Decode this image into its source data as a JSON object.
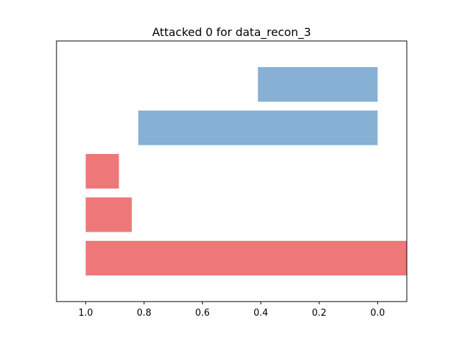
{
  "chart_data": {
    "type": "bar",
    "orientation": "horizontal",
    "title": "Attacked 0 for data_recon_3",
    "xlabel": "",
    "ylabel": "",
    "x_axis_inverted": true,
    "xlim": [
      1.1,
      -0.1
    ],
    "xticks": [
      "1.0",
      "0.8",
      "0.6",
      "0.4",
      "0.2",
      "0.0"
    ],
    "xtick_values": [
      1.0,
      0.8,
      0.6,
      0.4,
      0.2,
      0.0
    ],
    "yticks": [],
    "grid": false,
    "legend": "none",
    "bars": [
      {
        "start": 0.0,
        "end": 0.41,
        "color": "#86b0d4"
      },
      {
        "start": 0.0,
        "end": 0.82,
        "color": "#86b0d4"
      },
      {
        "start": 1.0,
        "end": 0.886,
        "color": "#ee7878"
      },
      {
        "start": 1.0,
        "end": 0.842,
        "color": "#ee7878"
      },
      {
        "start": 1.0,
        "end": -0.1,
        "color": "#ee7878"
      }
    ]
  }
}
